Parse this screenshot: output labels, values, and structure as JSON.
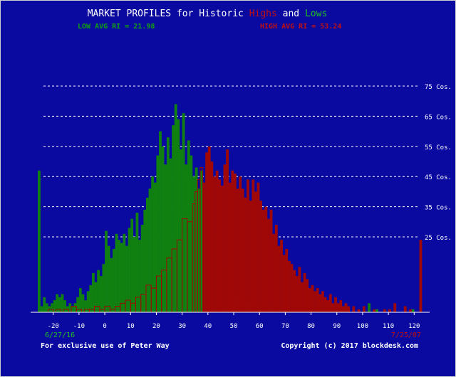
{
  "title": {
    "part1": "MARKET PROFILES for Historic ",
    "highs": "Highs",
    "and": " and ",
    "lows": "Lows"
  },
  "low_avg_label": "LOW AVG RI = 21.98",
  "high_avg_label": "HIGH AVG RI = 53.24",
  "date_left": "6/27/16",
  "date_right": "7/25/07",
  "footer_left": "For exclusive use of Peter Way",
  "footer_right": "Copyright (c) 2017 blockdesk.com",
  "colors": {
    "background": "#0a0aa0",
    "low": "#108010",
    "high": "#a00808",
    "text": "#ffffff"
  },
  "chart_data": {
    "type": "bar",
    "x_ticks": [
      -20,
      -10,
      0,
      10,
      20,
      30,
      40,
      50,
      60,
      70,
      80,
      90,
      100,
      110,
      120
    ],
    "y_ticks": [
      {
        "value": 25,
        "label": "25 Cos."
      },
      {
        "value": 35,
        "label": "35 Cos."
      },
      {
        "value": 45,
        "label": "45 Cos."
      },
      {
        "value": 55,
        "label": "55 Cos."
      },
      {
        "value": 65,
        "label": "65 Cos."
      },
      {
        "value": 75,
        "label": "75 Cos."
      }
    ],
    "xlim": [
      -26,
      126
    ],
    "ylim": [
      0,
      75
    ],
    "low_profile": [
      {
        "x": -26,
        "y": 47
      },
      {
        "x": -25,
        "y": 2
      },
      {
        "x": -24,
        "y": 5
      },
      {
        "x": -23,
        "y": 3
      },
      {
        "x": -22,
        "y": 2
      },
      {
        "x": -21,
        "y": 3
      },
      {
        "x": -20,
        "y": 4
      },
      {
        "x": -19,
        "y": 6
      },
      {
        "x": -18,
        "y": 5
      },
      {
        "x": -17,
        "y": 6
      },
      {
        "x": -16,
        "y": 4
      },
      {
        "x": -15,
        "y": 2
      },
      {
        "x": -14,
        "y": 3
      },
      {
        "x": -13,
        "y": 2
      },
      {
        "x": -12,
        "y": 3
      },
      {
        "x": -11,
        "y": 5
      },
      {
        "x": -10,
        "y": 8
      },
      {
        "x": -9,
        "y": 6
      },
      {
        "x": -8,
        "y": 4
      },
      {
        "x": -7,
        "y": 7
      },
      {
        "x": -6,
        "y": 9
      },
      {
        "x": -5,
        "y": 13
      },
      {
        "x": -4,
        "y": 10
      },
      {
        "x": -3,
        "y": 14
      },
      {
        "x": -2,
        "y": 12
      },
      {
        "x": -1,
        "y": 16
      },
      {
        "x": 0,
        "y": 27
      },
      {
        "x": 1,
        "y": 22
      },
      {
        "x": 2,
        "y": 18
      },
      {
        "x": 3,
        "y": 21
      },
      {
        "x": 4,
        "y": 26
      },
      {
        "x": 5,
        "y": 24
      },
      {
        "x": 6,
        "y": 23
      },
      {
        "x": 7,
        "y": 26
      },
      {
        "x": 8,
        "y": 22
      },
      {
        "x": 9,
        "y": 28
      },
      {
        "x": 10,
        "y": 31
      },
      {
        "x": 11,
        "y": 25
      },
      {
        "x": 12,
        "y": 33
      },
      {
        "x": 13,
        "y": 24
      },
      {
        "x": 14,
        "y": 29
      },
      {
        "x": 15,
        "y": 34
      },
      {
        "x": 16,
        "y": 38
      },
      {
        "x": 17,
        "y": 41
      },
      {
        "x": 18,
        "y": 45
      },
      {
        "x": 19,
        "y": 43
      },
      {
        "x": 20,
        "y": 52
      },
      {
        "x": 21,
        "y": 60
      },
      {
        "x": 22,
        "y": 55
      },
      {
        "x": 23,
        "y": 49
      },
      {
        "x": 24,
        "y": 58
      },
      {
        "x": 25,
        "y": 51
      },
      {
        "x": 26,
        "y": 62
      },
      {
        "x": 27,
        "y": 69
      },
      {
        "x": 28,
        "y": 64
      },
      {
        "x": 29,
        "y": 54
      },
      {
        "x": 30,
        "y": 66
      },
      {
        "x": 31,
        "y": 49
      },
      {
        "x": 32,
        "y": 57
      },
      {
        "x": 33,
        "y": 52
      },
      {
        "x": 34,
        "y": 45
      },
      {
        "x": 35,
        "y": 48
      },
      {
        "x": 36,
        "y": 41
      },
      {
        "x": 37,
        "y": 47
      },
      {
        "x": 38,
        "y": 39
      },
      {
        "x": 39,
        "y": 36
      },
      {
        "x": 40,
        "y": 33
      },
      {
        "x": 41,
        "y": 28
      },
      {
        "x": 42,
        "y": 26
      },
      {
        "x": 43,
        "y": 23
      },
      {
        "x": 44,
        "y": 19
      },
      {
        "x": 45,
        "y": 17
      },
      {
        "x": 46,
        "y": 14
      },
      {
        "x": 47,
        "y": 10
      },
      {
        "x": 48,
        "y": 12
      },
      {
        "x": 49,
        "y": 8
      },
      {
        "x": 50,
        "y": 9
      },
      {
        "x": 51,
        "y": 6
      },
      {
        "x": 52,
        "y": 5
      },
      {
        "x": 53,
        "y": 7
      },
      {
        "x": 54,
        "y": 4
      },
      {
        "x": 55,
        "y": 6
      },
      {
        "x": 56,
        "y": 3
      },
      {
        "x": 57,
        "y": 5
      },
      {
        "x": 58,
        "y": 2
      },
      {
        "x": 59,
        "y": 3
      },
      {
        "x": 60,
        "y": 4
      },
      {
        "x": 61,
        "y": 2
      },
      {
        "x": 62,
        "y": 3
      },
      {
        "x": 63,
        "y": 1
      },
      {
        "x": 64,
        "y": 2
      },
      {
        "x": 65,
        "y": 1
      },
      {
        "x": 66,
        "y": 1
      },
      {
        "x": 67,
        "y": 1
      },
      {
        "x": 68,
        "y": 1
      },
      {
        "x": 71,
        "y": 1
      },
      {
        "x": 74,
        "y": 1
      },
      {
        "x": 78,
        "y": 2
      },
      {
        "x": 82,
        "y": 1
      },
      {
        "x": 100,
        "y": 1
      },
      {
        "x": 102,
        "y": 3
      },
      {
        "x": 105,
        "y": 1
      },
      {
        "x": 119,
        "y": 1
      }
    ],
    "high_profile": [
      {
        "x": -22,
        "y": 1
      },
      {
        "x": -19,
        "y": 1
      },
      {
        "x": -16,
        "y": 1
      },
      {
        "x": -13,
        "y": 2
      },
      {
        "x": -11,
        "y": 1
      },
      {
        "x": -8,
        "y": 1
      },
      {
        "x": -6,
        "y": 1
      },
      {
        "x": -4,
        "y": 2
      },
      {
        "x": -2,
        "y": 1
      },
      {
        "x": 0,
        "y": 2
      },
      {
        "x": 2,
        "y": 1
      },
      {
        "x": 4,
        "y": 2
      },
      {
        "x": 6,
        "y": 3
      },
      {
        "x": 8,
        "y": 4
      },
      {
        "x": 10,
        "y": 3
      },
      {
        "x": 12,
        "y": 5
      },
      {
        "x": 14,
        "y": 6
      },
      {
        "x": 16,
        "y": 9
      },
      {
        "x": 18,
        "y": 8
      },
      {
        "x": 20,
        "y": 12
      },
      {
        "x": 22,
        "y": 14
      },
      {
        "x": 24,
        "y": 18
      },
      {
        "x": 26,
        "y": 21
      },
      {
        "x": 28,
        "y": 24
      },
      {
        "x": 30,
        "y": 31
      },
      {
        "x": 32,
        "y": 30
      },
      {
        "x": 34,
        "y": 36
      },
      {
        "x": 35,
        "y": 40
      },
      {
        "x": 36,
        "y": 44
      },
      {
        "x": 37,
        "y": 48
      },
      {
        "x": 38,
        "y": 43
      },
      {
        "x": 39,
        "y": 53
      },
      {
        "x": 40,
        "y": 55
      },
      {
        "x": 41,
        "y": 50
      },
      {
        "x": 42,
        "y": 45
      },
      {
        "x": 43,
        "y": 47
      },
      {
        "x": 44,
        "y": 44
      },
      {
        "x": 45,
        "y": 42
      },
      {
        "x": 46,
        "y": 49
      },
      {
        "x": 47,
        "y": 54
      },
      {
        "x": 48,
        "y": 43
      },
      {
        "x": 49,
        "y": 47
      },
      {
        "x": 50,
        "y": 46
      },
      {
        "x": 51,
        "y": 41
      },
      {
        "x": 52,
        "y": 45
      },
      {
        "x": 53,
        "y": 41
      },
      {
        "x": 54,
        "y": 38
      },
      {
        "x": 55,
        "y": 44
      },
      {
        "x": 56,
        "y": 37
      },
      {
        "x": 57,
        "y": 44
      },
      {
        "x": 58,
        "y": 40
      },
      {
        "x": 59,
        "y": 43
      },
      {
        "x": 60,
        "y": 37
      },
      {
        "x": 61,
        "y": 34
      },
      {
        "x": 62,
        "y": 35
      },
      {
        "x": 63,
        "y": 31
      },
      {
        "x": 64,
        "y": 34
      },
      {
        "x": 65,
        "y": 26
      },
      {
        "x": 66,
        "y": 29
      },
      {
        "x": 67,
        "y": 22
      },
      {
        "x": 68,
        "y": 24
      },
      {
        "x": 69,
        "y": 19
      },
      {
        "x": 70,
        "y": 21
      },
      {
        "x": 71,
        "y": 17
      },
      {
        "x": 72,
        "y": 16
      },
      {
        "x": 73,
        "y": 14
      },
      {
        "x": 74,
        "y": 12
      },
      {
        "x": 75,
        "y": 15
      },
      {
        "x": 76,
        "y": 10
      },
      {
        "x": 77,
        "y": 13
      },
      {
        "x": 78,
        "y": 11
      },
      {
        "x": 79,
        "y": 8
      },
      {
        "x": 80,
        "y": 9
      },
      {
        "x": 81,
        "y": 7
      },
      {
        "x": 82,
        "y": 8
      },
      {
        "x": 83,
        "y": 6
      },
      {
        "x": 84,
        "y": 7
      },
      {
        "x": 85,
        "y": 5
      },
      {
        "x": 86,
        "y": 4
      },
      {
        "x": 87,
        "y": 6
      },
      {
        "x": 88,
        "y": 3
      },
      {
        "x": 89,
        "y": 5
      },
      {
        "x": 90,
        "y": 3
      },
      {
        "x": 91,
        "y": 4
      },
      {
        "x": 92,
        "y": 2
      },
      {
        "x": 93,
        "y": 3
      },
      {
        "x": 94,
        "y": 2
      },
      {
        "x": 96,
        "y": 2
      },
      {
        "x": 98,
        "y": 1
      },
      {
        "x": 100,
        "y": 2
      },
      {
        "x": 104,
        "y": 1
      },
      {
        "x": 108,
        "y": 1
      },
      {
        "x": 110,
        "y": 1
      },
      {
        "x": 112,
        "y": 3
      },
      {
        "x": 116,
        "y": 2
      },
      {
        "x": 118,
        "y": 1
      },
      {
        "x": 122,
        "y": 24
      }
    ]
  }
}
